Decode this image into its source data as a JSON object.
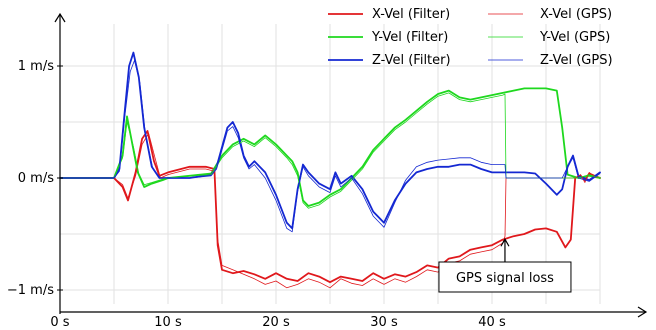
{
  "chart_data": {
    "type": "line",
    "title": "",
    "xlabel": "",
    "ylabel": "",
    "x_unit": "s",
    "y_unit": "m/s",
    "xlim": [
      0,
      52
    ],
    "ylim": [
      -1.1,
      1.12
    ],
    "x_ticks": [
      0,
      10,
      20,
      30,
      40
    ],
    "x_tick_labels": [
      "0 s",
      "10 s",
      "20 s",
      "30 s",
      "40 s"
    ],
    "y_ticks": [
      1,
      0,
      -1
    ],
    "y_tick_labels": [
      "1 m/s",
      "0 m/s",
      "−1 m/s"
    ],
    "grid": true,
    "legend_position": "top-right",
    "annotation": {
      "text": "GPS signal loss",
      "x": 41.2,
      "y": -0.52
    },
    "series": [
      {
        "name": "X-Vel (Filter)",
        "color": "#e0181c",
        "style": "thick",
        "points": [
          [
            0,
            0.0
          ],
          [
            5,
            0.0
          ],
          [
            5.8,
            -0.08
          ],
          [
            6.3,
            -0.2
          ],
          [
            7.0,
            0.05
          ],
          [
            7.6,
            0.35
          ],
          [
            8.1,
            0.42
          ],
          [
            8.7,
            0.15
          ],
          [
            9.2,
            0.02
          ],
          [
            10,
            0.05
          ],
          [
            12,
            0.1
          ],
          [
            13.5,
            0.1
          ],
          [
            14.3,
            0.08
          ],
          [
            14.6,
            -0.6
          ],
          [
            15,
            -0.82
          ],
          [
            16,
            -0.85
          ],
          [
            17,
            -0.83
          ],
          [
            18,
            -0.86
          ],
          [
            19,
            -0.9
          ],
          [
            20,
            -0.85
          ],
          [
            21,
            -0.9
          ],
          [
            22,
            -0.92
          ],
          [
            23,
            -0.85
          ],
          [
            24,
            -0.88
          ],
          [
            25,
            -0.93
          ],
          [
            26,
            -0.88
          ],
          [
            27,
            -0.9
          ],
          [
            28,
            -0.92
          ],
          [
            29,
            -0.85
          ],
          [
            30,
            -0.9
          ],
          [
            31,
            -0.86
          ],
          [
            32,
            -0.88
          ],
          [
            33,
            -0.84
          ],
          [
            34,
            -0.78
          ],
          [
            35,
            -0.8
          ],
          [
            36,
            -0.72
          ],
          [
            37,
            -0.7
          ],
          [
            38,
            -0.64
          ],
          [
            39,
            -0.62
          ],
          [
            40,
            -0.6
          ],
          [
            41,
            -0.55
          ],
          [
            42,
            -0.52
          ],
          [
            43,
            -0.5
          ],
          [
            44,
            -0.46
          ],
          [
            45,
            -0.45
          ],
          [
            46,
            -0.48
          ],
          [
            46.8,
            -0.62
          ],
          [
            47.3,
            -0.55
          ],
          [
            47.7,
            0.0
          ],
          [
            48.2,
            0.02
          ],
          [
            48.6,
            -0.02
          ],
          [
            49,
            0.04
          ],
          [
            49.5,
            0.02
          ],
          [
            50,
            0.0
          ]
        ]
      },
      {
        "name": "X-Vel (GPS)",
        "color": "#e0181c",
        "style": "thin",
        "points": [
          [
            0,
            0.0
          ],
          [
            5,
            0.0
          ],
          [
            5.8,
            -0.06
          ],
          [
            6.3,
            -0.18
          ],
          [
            7.0,
            0.02
          ],
          [
            7.6,
            0.3
          ],
          [
            8.2,
            0.4
          ],
          [
            8.8,
            0.18
          ],
          [
            9.3,
            0.0
          ],
          [
            10,
            0.03
          ],
          [
            12,
            0.08
          ],
          [
            13.5,
            0.08
          ],
          [
            14.3,
            0.06
          ],
          [
            14.6,
            -0.55
          ],
          [
            15,
            -0.78
          ],
          [
            16,
            -0.82
          ],
          [
            17,
            -0.86
          ],
          [
            18,
            -0.9
          ],
          [
            19,
            -0.95
          ],
          [
            20,
            -0.92
          ],
          [
            21,
            -0.98
          ],
          [
            22,
            -0.95
          ],
          [
            23,
            -0.9
          ],
          [
            24,
            -0.93
          ],
          [
            25,
            -0.98
          ],
          [
            26,
            -0.9
          ],
          [
            27,
            -0.94
          ],
          [
            28,
            -0.96
          ],
          [
            29,
            -0.9
          ],
          [
            30,
            -0.95
          ],
          [
            31,
            -0.9
          ],
          [
            32,
            -0.93
          ],
          [
            33,
            -0.88
          ],
          [
            34,
            -0.82
          ],
          [
            35,
            -0.84
          ],
          [
            36,
            -0.76
          ],
          [
            37,
            -0.74
          ],
          [
            38,
            -0.68
          ],
          [
            39,
            -0.66
          ],
          [
            40,
            -0.64
          ],
          [
            41,
            -0.58
          ],
          [
            41.2,
            -0.52
          ],
          [
            41.3,
            0.0
          ],
          [
            46.5,
            0.0
          ],
          [
            47,
            0.0
          ],
          [
            47.7,
            0.0
          ],
          [
            48.2,
            0.03
          ],
          [
            48.6,
            -0.04
          ],
          [
            49,
            0.05
          ],
          [
            49.5,
            0.01
          ],
          [
            50,
            0.0
          ]
        ]
      },
      {
        "name": "Y-Vel (Filter)",
        "color": "#1ed81e",
        "style": "thick",
        "points": [
          [
            0,
            0.0
          ],
          [
            5,
            0.0
          ],
          [
            5.8,
            0.2
          ],
          [
            6.2,
            0.55
          ],
          [
            6.7,
            0.3
          ],
          [
            7.2,
            0.05
          ],
          [
            7.8,
            -0.08
          ],
          [
            8.5,
            -0.05
          ],
          [
            9.5,
            -0.02
          ],
          [
            10,
            0.0
          ],
          [
            12,
            0.02
          ],
          [
            14,
            0.04
          ],
          [
            15,
            0.2
          ],
          [
            16,
            0.3
          ],
          [
            17,
            0.35
          ],
          [
            18,
            0.3
          ],
          [
            19,
            0.38
          ],
          [
            20,
            0.3
          ],
          [
            21,
            0.2
          ],
          [
            21.5,
            0.15
          ],
          [
            22,
            0.05
          ],
          [
            22.5,
            -0.2
          ],
          [
            23,
            -0.25
          ],
          [
            24,
            -0.22
          ],
          [
            25,
            -0.15
          ],
          [
            26,
            -0.1
          ],
          [
            27,
            0.0
          ],
          [
            28,
            0.1
          ],
          [
            29,
            0.25
          ],
          [
            30,
            0.35
          ],
          [
            31,
            0.45
          ],
          [
            32,
            0.52
          ],
          [
            33,
            0.6
          ],
          [
            34,
            0.68
          ],
          [
            35,
            0.75
          ],
          [
            36,
            0.78
          ],
          [
            37,
            0.72
          ],
          [
            38,
            0.7
          ],
          [
            39,
            0.72
          ],
          [
            40,
            0.74
          ],
          [
            41,
            0.76
          ],
          [
            42,
            0.78
          ],
          [
            43,
            0.8
          ],
          [
            44,
            0.8
          ],
          [
            45,
            0.8
          ],
          [
            46,
            0.78
          ],
          [
            46.5,
            0.45
          ],
          [
            47,
            0.03
          ],
          [
            48,
            0.0
          ],
          [
            49,
            0.02
          ],
          [
            50,
            0.0
          ]
        ]
      },
      {
        "name": "Y-Vel (GPS)",
        "color": "#1ed81e",
        "style": "thin",
        "points": [
          [
            0,
            0.0
          ],
          [
            5,
            0.0
          ],
          [
            5.8,
            0.18
          ],
          [
            6.2,
            0.5
          ],
          [
            6.8,
            0.28
          ],
          [
            7.3,
            0.04
          ],
          [
            7.8,
            -0.06
          ],
          [
            8.5,
            -0.04
          ],
          [
            9.5,
            -0.01
          ],
          [
            10,
            0.0
          ],
          [
            12,
            0.02
          ],
          [
            14,
            0.03
          ],
          [
            15,
            0.18
          ],
          [
            16,
            0.28
          ],
          [
            17,
            0.33
          ],
          [
            18,
            0.28
          ],
          [
            19,
            0.36
          ],
          [
            20,
            0.28
          ],
          [
            21,
            0.18
          ],
          [
            21.5,
            0.12
          ],
          [
            22,
            0.02
          ],
          [
            22.5,
            -0.22
          ],
          [
            23,
            -0.27
          ],
          [
            24,
            -0.24
          ],
          [
            25,
            -0.17
          ],
          [
            26,
            -0.12
          ],
          [
            27,
            -0.02
          ],
          [
            28,
            0.08
          ],
          [
            29,
            0.23
          ],
          [
            30,
            0.33
          ],
          [
            31,
            0.43
          ],
          [
            32,
            0.5
          ],
          [
            33,
            0.58
          ],
          [
            34,
            0.66
          ],
          [
            35,
            0.73
          ],
          [
            36,
            0.76
          ],
          [
            37,
            0.7
          ],
          [
            38,
            0.68
          ],
          [
            39,
            0.7
          ],
          [
            40,
            0.72
          ],
          [
            41,
            0.74
          ],
          [
            41.2,
            0.75
          ],
          [
            41.3,
            0.0
          ],
          [
            46.5,
            0.0
          ],
          [
            47,
            0.0
          ],
          [
            48,
            0.0
          ],
          [
            49,
            0.03
          ],
          [
            50,
            0.0
          ]
        ]
      },
      {
        "name": "Z-Vel (Filter)",
        "color": "#1428d2",
        "style": "thick",
        "points": [
          [
            0,
            0.0
          ],
          [
            5,
            0.0
          ],
          [
            5.5,
            0.08
          ],
          [
            6.0,
            0.6
          ],
          [
            6.4,
            1.0
          ],
          [
            6.8,
            1.12
          ],
          [
            7.3,
            0.9
          ],
          [
            7.8,
            0.45
          ],
          [
            8.5,
            0.1
          ],
          [
            9.2,
            0.0
          ],
          [
            10,
            0.0
          ],
          [
            12,
            0.0
          ],
          [
            14,
            0.03
          ],
          [
            14.5,
            0.1
          ],
          [
            15.5,
            0.45
          ],
          [
            16,
            0.5
          ],
          [
            16.5,
            0.4
          ],
          [
            17,
            0.2
          ],
          [
            17.5,
            0.1
          ],
          [
            18,
            0.15
          ],
          [
            19,
            0.05
          ],
          [
            20,
            -0.15
          ],
          [
            21,
            -0.4
          ],
          [
            21.5,
            -0.45
          ],
          [
            22,
            -0.1
          ],
          [
            22.5,
            0.12
          ],
          [
            23,
            0.05
          ],
          [
            24,
            -0.05
          ],
          [
            25,
            -0.1
          ],
          [
            25.5,
            0.05
          ],
          [
            26,
            -0.05
          ],
          [
            27,
            0.02
          ],
          [
            28,
            -0.1
          ],
          [
            29,
            -0.3
          ],
          [
            30,
            -0.4
          ],
          [
            31,
            -0.2
          ],
          [
            32,
            -0.05
          ],
          [
            33,
            0.05
          ],
          [
            34,
            0.08
          ],
          [
            35,
            0.1
          ],
          [
            36,
            0.1
          ],
          [
            37,
            0.12
          ],
          [
            38,
            0.12
          ],
          [
            39,
            0.08
          ],
          [
            40,
            0.05
          ],
          [
            41,
            0.05
          ],
          [
            42,
            0.05
          ],
          [
            43,
            0.05
          ],
          [
            44,
            0.04
          ],
          [
            45,
            -0.05
          ],
          [
            46,
            -0.15
          ],
          [
            46.5,
            -0.1
          ],
          [
            47,
            0.1
          ],
          [
            47.5,
            0.2
          ],
          [
            48,
            0.02
          ],
          [
            49,
            -0.02
          ],
          [
            50,
            0.05
          ]
        ]
      },
      {
        "name": "Z-Vel (GPS)",
        "color": "#1428d2",
        "style": "thin",
        "points": [
          [
            0,
            0.0
          ],
          [
            5,
            0.0
          ],
          [
            5.5,
            0.06
          ],
          [
            6.0,
            0.55
          ],
          [
            6.5,
            0.95
          ],
          [
            6.9,
            1.05
          ],
          [
            7.4,
            0.85
          ],
          [
            7.9,
            0.4
          ],
          [
            8.6,
            0.08
          ],
          [
            9.3,
            0.0
          ],
          [
            10,
            0.0
          ],
          [
            12,
            0.0
          ],
          [
            14,
            0.02
          ],
          [
            14.5,
            0.08
          ],
          [
            15.5,
            0.42
          ],
          [
            16,
            0.46
          ],
          [
            16.5,
            0.36
          ],
          [
            17,
            0.18
          ],
          [
            17.5,
            0.08
          ],
          [
            18,
            0.12
          ],
          [
            19,
            0.0
          ],
          [
            20,
            -0.2
          ],
          [
            21,
            -0.45
          ],
          [
            21.5,
            -0.48
          ],
          [
            22,
            -0.12
          ],
          [
            22.5,
            0.1
          ],
          [
            23,
            0.02
          ],
          [
            24,
            -0.08
          ],
          [
            25,
            -0.13
          ],
          [
            25.5,
            0.02
          ],
          [
            26,
            -0.08
          ],
          [
            27,
            0.0
          ],
          [
            28,
            -0.14
          ],
          [
            29,
            -0.34
          ],
          [
            30,
            -0.44
          ],
          [
            31,
            -0.22
          ],
          [
            32,
            -0.02
          ],
          [
            33,
            0.1
          ],
          [
            34,
            0.14
          ],
          [
            35,
            0.16
          ],
          [
            36,
            0.17
          ],
          [
            37,
            0.18
          ],
          [
            38,
            0.18
          ],
          [
            39,
            0.14
          ],
          [
            40,
            0.12
          ],
          [
            41,
            0.12
          ],
          [
            41.2,
            0.12
          ],
          [
            41.3,
            0.0
          ],
          [
            46.5,
            0.0
          ],
          [
            47,
            0.1
          ],
          [
            47.5,
            0.18
          ],
          [
            48,
            0.0
          ],
          [
            49,
            -0.03
          ],
          [
            50,
            0.04
          ]
        ]
      }
    ]
  }
}
